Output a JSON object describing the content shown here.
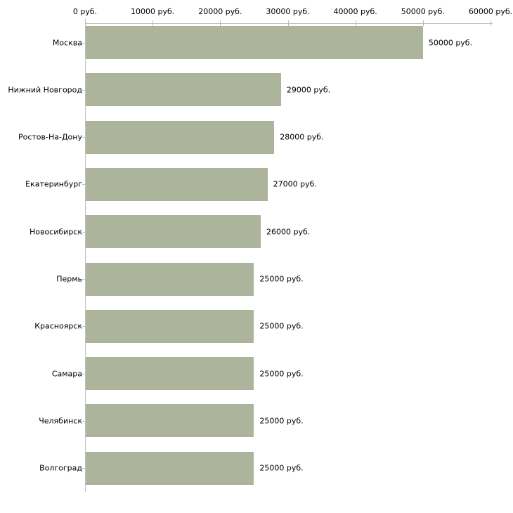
{
  "chart_data": {
    "type": "bar",
    "orientation": "horizontal",
    "title": "",
    "xlabel": "",
    "ylabel": "",
    "unit_suffix": " руб.",
    "categories": [
      "Москва",
      "Нижний Новгород",
      "Ростов-На-Дону",
      "Екатеринбург",
      "Новосибирск",
      "Пермь",
      "Красноярск",
      "Самара",
      "Челябинск",
      "Волгоград"
    ],
    "values": [
      50000,
      29000,
      28000,
      27000,
      26000,
      25000,
      25000,
      25000,
      25000,
      25000
    ],
    "value_labels": [
      "50000 руб.",
      "29000 руб.",
      "28000 руб.",
      "27000 руб.",
      "26000 руб.",
      "25000 руб.",
      "25000 руб.",
      "25000 руб.",
      "25000 руб.",
      "25000 руб."
    ],
    "x_ticks": [
      0,
      10000,
      20000,
      30000,
      40000,
      50000,
      60000
    ],
    "x_tick_labels": [
      "0 руб.",
      "10000 руб.",
      "20000 руб.",
      "30000 руб.",
      "40000 руб.",
      "50000 руб.",
      "60000 руб."
    ],
    "xlim": [
      0,
      60000
    ],
    "grid": false,
    "legend": null,
    "colors": {
      "bar": "#acb49b",
      "axis_line": "#c0c0c0",
      "x_tick": "#b9bd9e",
      "y_tick": "#c2c5ac",
      "text": "#000000",
      "background": "#ffffff"
    }
  }
}
